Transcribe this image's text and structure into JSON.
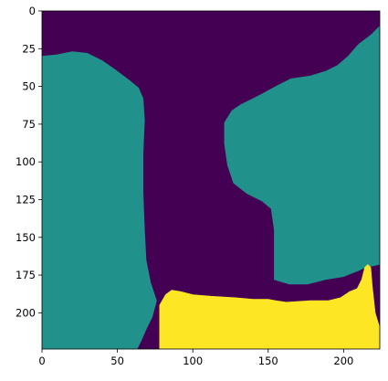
{
  "chart_data": {
    "type": "heatmap",
    "title": "",
    "xlabel": "",
    "ylabel": "",
    "image_size": [
      224,
      224
    ],
    "xlim": [
      0,
      224
    ],
    "ylim": [
      224,
      0
    ],
    "grid": false,
    "colormap": "viridis",
    "classes": [
      {
        "value": 0,
        "color": "#440154"
      },
      {
        "value": 1,
        "color": "#21918c"
      },
      {
        "value": 2,
        "color": "#fde725"
      }
    ],
    "x_ticks": [
      0,
      50,
      100,
      150,
      200
    ],
    "x_tick_labels": [
      "0",
      "50",
      "100",
      "150",
      "200"
    ],
    "y_ticks": [
      0,
      25,
      50,
      75,
      100,
      125,
      150,
      175,
      200
    ],
    "y_tick_labels": [
      "0",
      "25",
      "50",
      "75",
      "100",
      "125",
      "150",
      "175",
      "200"
    ],
    "regions": {
      "left_teal": {
        "value": 1,
        "outline": [
          [
            0,
            30
          ],
          [
            10,
            29
          ],
          [
            20,
            27
          ],
          [
            30,
            28
          ],
          [
            40,
            33
          ],
          [
            50,
            40
          ],
          [
            58,
            46
          ],
          [
            64,
            51
          ],
          [
            67,
            58
          ],
          [
            68,
            72
          ],
          [
            67,
            95
          ],
          [
            67,
            120
          ],
          [
            68,
            145
          ],
          [
            69,
            165
          ],
          [
            72,
            180
          ],
          [
            76,
            192
          ],
          [
            73,
            203
          ],
          [
            69,
            211
          ],
          [
            66,
            218
          ],
          [
            63,
            224
          ],
          [
            0,
            224
          ]
        ]
      },
      "right_teal": {
        "value": 1,
        "outline": [
          [
            224,
            10
          ],
          [
            218,
            16
          ],
          [
            210,
            22
          ],
          [
            203,
            30
          ],
          [
            196,
            36
          ],
          [
            188,
            40
          ],
          [
            178,
            43
          ],
          [
            165,
            45
          ],
          [
            155,
            50
          ],
          [
            146,
            55
          ],
          [
            138,
            59
          ],
          [
            132,
            62
          ],
          [
            126,
            66
          ],
          [
            121,
            74
          ],
          [
            121,
            88
          ],
          [
            123,
            102
          ],
          [
            127,
            114
          ],
          [
            136,
            121
          ],
          [
            146,
            126
          ],
          [
            152,
            131
          ],
          [
            154,
            145
          ],
          [
            154,
            165
          ],
          [
            154,
            178
          ],
          [
            164,
            181
          ],
          [
            176,
            181
          ],
          [
            188,
            178
          ],
          [
            200,
            176
          ],
          [
            210,
            172
          ],
          [
            214,
            170
          ],
          [
            224,
            168
          ]
        ]
      },
      "yellow": {
        "value": 2,
        "outline": [
          [
            78,
            224
          ],
          [
            78,
            195
          ],
          [
            82,
            188
          ],
          [
            86,
            185
          ],
          [
            92,
            186
          ],
          [
            100,
            188
          ],
          [
            112,
            189
          ],
          [
            128,
            190
          ],
          [
            140,
            191
          ],
          [
            150,
            191
          ],
          [
            155,
            192
          ],
          [
            162,
            193
          ],
          [
            178,
            192
          ],
          [
            190,
            192
          ],
          [
            198,
            190
          ],
          [
            204,
            186
          ],
          [
            209,
            184
          ],
          [
            212,
            178
          ],
          [
            214,
            170
          ],
          [
            216,
            168
          ],
          [
            218,
            170
          ],
          [
            219,
            182
          ],
          [
            221,
            200
          ],
          [
            224,
            210
          ],
          [
            224,
            224
          ]
        ]
      }
    }
  }
}
